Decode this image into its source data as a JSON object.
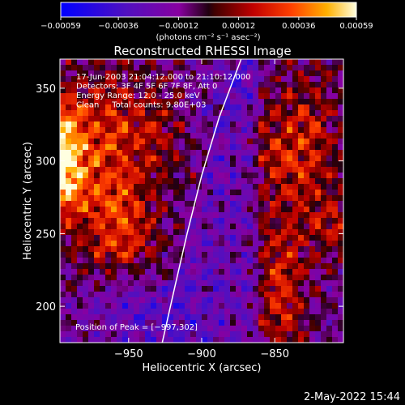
{
  "chart_data": {
    "type": "heatmap",
    "title": "Reconstructed RHESSI Image",
    "xlabel": "Heliocentric X (arcsec)",
    "ylabel": "Heliocentric Y (arcsec)",
    "xlim": [
      -997,
      -803
    ],
    "ylim": [
      175,
      370
    ],
    "x_ticks": [
      -950,
      -900,
      -850
    ],
    "x_tick_labels": [
      "−950",
      "−900",
      "−850"
    ],
    "y_ticks": [
      200,
      250,
      300,
      350
    ],
    "y_tick_labels": [
      "200",
      "250",
      "300",
      "350"
    ],
    "colorbar": {
      "min": -0.00059,
      "max": 0.00059,
      "ticks": [
        -0.00059,
        -0.00036,
        -0.00012,
        0.00012,
        0.00036,
        0.00059
      ],
      "tick_labels": [
        "−0.00059",
        "−0.00036",
        "−0.00012",
        "0.00012",
        "0.00036",
        "0.00059"
      ],
      "unit_label": "(photons cm⁻² s⁻¹ asec⁻²)"
    },
    "annotations": [
      "17-Jun-2003 21:04:12.000 to 21:10:12.000",
      "Detectors: 3F 4F 5F 6F 7F 8F, Att 0",
      "Energy Range: 12.0 - 25.0 keV",
      "Clean     Total counts: 9.80E+03"
    ],
    "peak_label": "Position of Peak = [−997,302]",
    "peak": [
      -997,
      302
    ],
    "limb": [
      [
        -927,
        175
      ],
      [
        -918,
        215
      ],
      [
        -910,
        250
      ],
      [
        -900,
        290
      ],
      [
        -888,
        330
      ],
      [
        -873,
        370
      ]
    ],
    "grid": false
  },
  "footer": {
    "date_stamp": "2-May-2022 15:44"
  }
}
